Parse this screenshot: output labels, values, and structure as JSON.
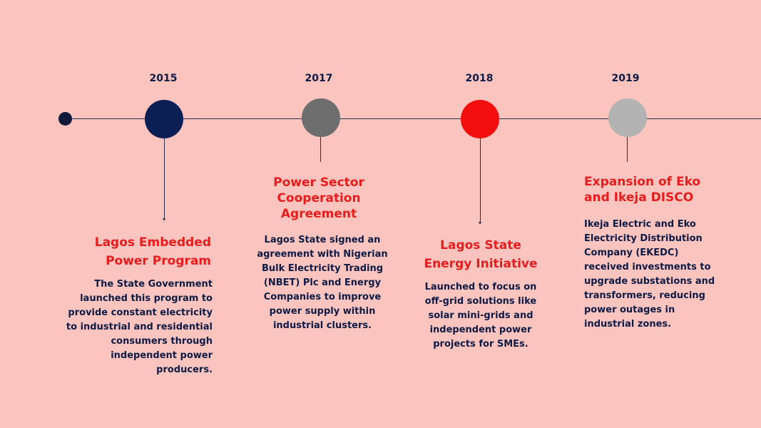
{
  "colors": {
    "background": "#fbc4bf",
    "accent_title": "#e81c1c",
    "text_dark": "#0d1b45",
    "node_2015": "#0b1f55",
    "node_2017": "#6e6e6e",
    "node_2018": "#f40f0f",
    "node_2019": "#b3b3b3"
  },
  "events": [
    {
      "year": "2015",
      "title": "Lagos Embedded\nPower Program",
      "description": "The State Government\nlaunched this program to\nprovide constant electricity\nto industrial and residential\nconsumers through\nindependent power\nproducers."
    },
    {
      "year": "2017",
      "title": "Power Sector\nCooperation\nAgreement",
      "description": "Lagos State signed an\nagreement with Nigerian\nBulk Electricity Trading\n(NBET) Plc and Energy\nCompanies to improve\npower supply within\nindustrial clusters."
    },
    {
      "year": "2018",
      "title": "Lagos State\nEnergy Initiative",
      "description": "Launched to focus on\noff-grid solutions like\nsolar mini-grids and\nindependent power\nprojects for SMEs."
    },
    {
      "year": "2019",
      "title": "Expansion of Eko\nand Ikeja DISCO",
      "description": "Ikeja Electric and Eko\nElectricity Distribution\nCompany (EKEDC)\nreceived investments to\nupgrade substations and\ntransformers, reducing\npower outages in\nindustrial zones."
    }
  ]
}
